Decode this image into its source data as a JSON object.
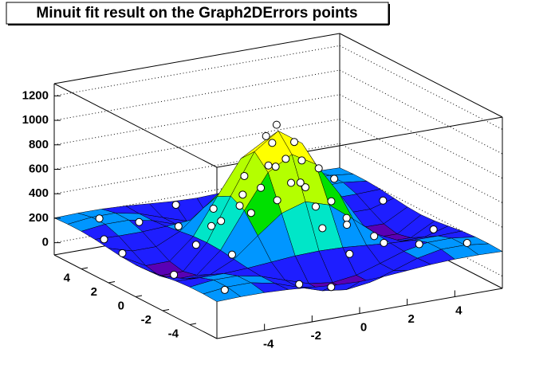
{
  "chart_data": {
    "type": "surface3d",
    "title": "Minuit fit result on the Graph2DErrors points",
    "xlim": [
      -6,
      6
    ],
    "ylim": [
      -6,
      6
    ],
    "zlim": [
      -100,
      1300
    ],
    "xticks": [
      -4,
      -2,
      0,
      2,
      4
    ],
    "yticks": [
      -4,
      -2,
      0,
      2,
      4
    ],
    "zticks": [
      0,
      200,
      400,
      600,
      800,
      1000,
      1200
    ],
    "grid": true,
    "palette": [
      "#5a00b4",
      "#1e1eff",
      "#0096ff",
      "#00e6c8",
      "#00e000",
      "#b4ff00",
      "#ffff00",
      "#ff8c00",
      "#ff0000"
    ],
    "surface": {
      "x": [
        -6,
        -5,
        -4,
        -3,
        -2,
        -1,
        0,
        1,
        2,
        3,
        4,
        5,
        6
      ],
      "y": [
        -6,
        -5,
        -4,
        -3,
        -2,
        -1,
        0,
        1,
        2,
        3,
        4,
        5,
        6
      ],
      "z": [
        [
          202,
          208,
          207,
          198,
          182,
          167,
          160,
          167,
          182,
          198,
          207,
          208,
          202
        ],
        [
          208,
          231,
          231,
          192,
          126,
          63,
          37,
          63,
          126,
          192,
          231,
          231,
          208
        ],
        [
          207,
          231,
          230,
          192,
          127,
          65,
          39,
          65,
          127,
          192,
          230,
          231,
          207
        ],
        [
          198,
          192,
          192,
          202,
          218,
          234,
          240,
          234,
          218,
          202,
          192,
          192,
          198
        ],
        [
          182,
          126,
          127,
          218,
          376,
          525,
          586,
          525,
          376,
          218,
          127,
          126,
          182
        ],
        [
          167,
          63,
          65,
          234,
          525,
          802,
          915,
          802,
          525,
          234,
          65,
          63,
          167
        ],
        [
          160,
          37,
          39,
          240,
          586,
          915,
          1050,
          915,
          586,
          240,
          39,
          37,
          160
        ],
        [
          167,
          63,
          65,
          234,
          525,
          802,
          915,
          802,
          525,
          234,
          65,
          63,
          167
        ],
        [
          182,
          126,
          127,
          218,
          376,
          525,
          586,
          525,
          376,
          218,
          127,
          126,
          182
        ],
        [
          198,
          192,
          192,
          202,
          218,
          234,
          240,
          234,
          218,
          202,
          192,
          192,
          198
        ],
        [
          207,
          231,
          230,
          192,
          127,
          65,
          39,
          65,
          127,
          192,
          230,
          231,
          207
        ],
        [
          208,
          231,
          231,
          192,
          126,
          63,
          37,
          63,
          126,
          192,
          231,
          231,
          208
        ],
        [
          202,
          208,
          207,
          198,
          182,
          167,
          160,
          167,
          182,
          198,
          207,
          208,
          202
        ]
      ]
    },
    "points": {
      "x": [
        0.1,
        -0.4,
        0.5,
        0.2,
        -0.7,
        1.1,
        -1.2,
        0.4,
        1.5,
        -1.6,
        2.0,
        -0.3,
        0.6,
        -2.3,
        2.6,
        -2.8,
        3.1,
        0.2,
        -3.4,
        1.0,
        4.2,
        -4.5,
        0.1,
        -0.4,
        4.8,
        -4.9,
        5.2,
        -5.1,
        5.6,
        -5.7,
        2.4,
        -2.2,
        3.7,
        -3.8,
        1.8,
        -1.7,
        2.9,
        -2.6,
        0.8,
        -0.9,
        1.3,
        -0.2,
        3.5,
        -5.5,
        5.5,
        -1.0
      ],
      "y": [
        0.3,
        0.2,
        -0.3,
        0.8,
        -0.5,
        0.2,
        0.4,
        -1.3,
        1.0,
        -0.8,
        -0.4,
        2.1,
        -2.2,
        0.9,
        1.8,
        -1.5,
        0.4,
        3.2,
        0.1,
        -3.5,
        0.3,
        -0.2,
        4.4,
        -4.6,
        4.3,
        4.6,
        -4.8,
        -5.0,
        2.1,
        1.5,
        5.5,
        -5.4,
        -3.9,
        3.6,
        -1.9,
        1.8,
        -2.7,
        2.8,
        1.6,
        -1.5,
        -0.7,
        -0.9,
        5.2,
        3.2,
        -1.8,
        5.8
      ],
      "z": [
        1080,
        1010,
        960,
        900,
        820,
        760,
        700,
        650,
        520,
        480,
        430,
        420,
        360,
        300,
        240,
        220,
        210,
        250,
        230,
        210,
        30,
        40,
        60,
        50,
        250,
        240,
        230,
        210,
        170,
        160,
        190,
        180,
        220,
        230,
        330,
        370,
        190,
        200,
        640,
        600,
        740,
        880,
        210,
        170,
        160,
        150
      ]
    }
  }
}
